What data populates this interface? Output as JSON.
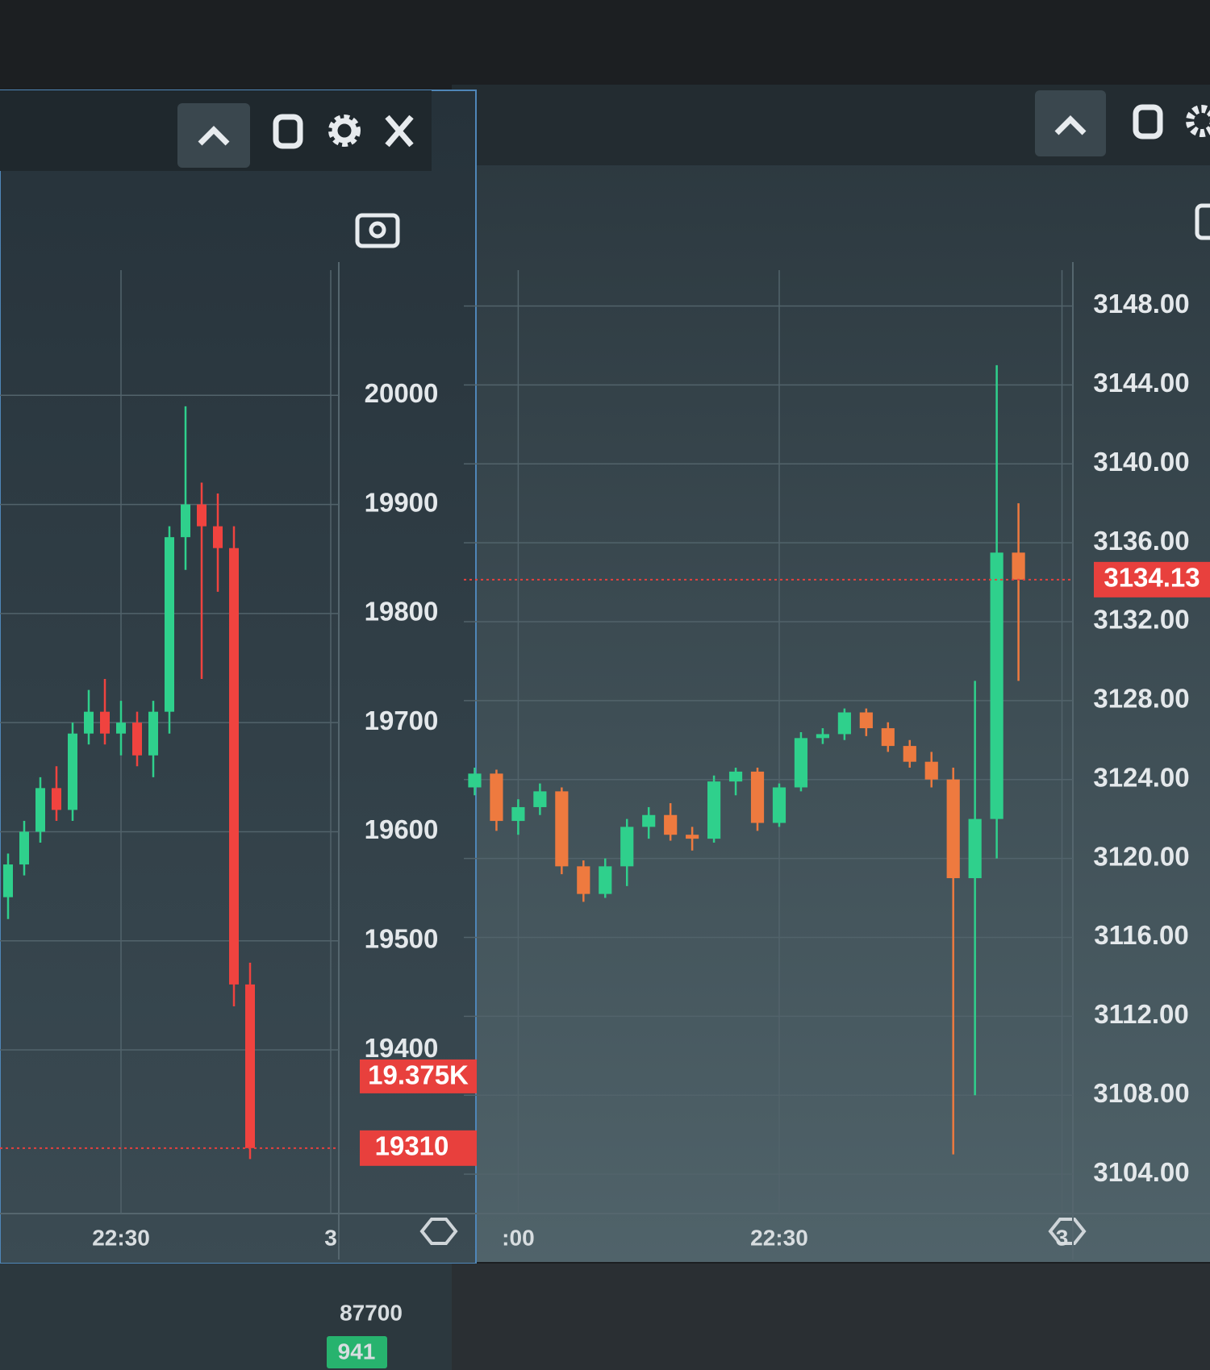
{
  "chart_data": [
    {
      "type": "candlestick",
      "categories": [
        null,
        null,
        null,
        null,
        null,
        null,
        null,
        "22:30",
        null,
        null,
        null,
        null,
        null,
        null,
        null,
        null,
        null,
        null,
        null,
        null,
        "3"
      ],
      "open": [
        19540,
        19570,
        19600,
        19640,
        19620,
        19690,
        19710,
        19690,
        19700,
        19670,
        19710,
        19870,
        19900,
        19880,
        19860,
        19460,
        null,
        null,
        null,
        null,
        null
      ],
      "high": [
        19580,
        19610,
        19650,
        19660,
        19700,
        19730,
        19740,
        19720,
        19710,
        19720,
        19880,
        19990,
        19920,
        19910,
        19880,
        19480,
        null,
        null,
        null,
        null,
        null
      ],
      "low": [
        19520,
        19560,
        19590,
        19610,
        19610,
        19680,
        19680,
        19670,
        19660,
        19650,
        19690,
        19840,
        19740,
        19820,
        19440,
        19300,
        null,
        null,
        null,
        null,
        null
      ],
      "close": [
        19570,
        19600,
        19640,
        19620,
        19690,
        19710,
        19690,
        19700,
        19670,
        19710,
        19870,
        19900,
        19880,
        19860,
        19460,
        19310,
        null,
        null,
        null,
        null,
        null
      ],
      "up_color": "#2fd08c",
      "down_color": "#f0433f",
      "ylim": [
        19250,
        20100
      ],
      "yticks": [
        19400,
        19500,
        19600,
        19700,
        19800,
        19900,
        20000
      ],
      "grid": true,
      "last_price": 19310,
      "secondary_price": {
        "value": 19375,
        "label": "19.375K"
      }
    },
    {
      "type": "candlestick",
      "categories": [
        null,
        null,
        ":00",
        null,
        null,
        null,
        null,
        null,
        null,
        null,
        null,
        null,
        null,
        null,
        "22:30",
        null,
        null,
        null,
        null,
        null,
        null,
        null,
        null,
        null,
        null,
        null,
        null,
        "3"
      ],
      "open": [
        3123.6,
        3124.3,
        3121.9,
        3122.6,
        3123.4,
        3119.6,
        3118.2,
        3119.6,
        3121.6,
        3122.2,
        3121.2,
        3121.0,
        3123.9,
        3124.4,
        3121.8,
        3123.6,
        3126.1,
        3126.3,
        3127.4,
        3126.6,
        3125.7,
        3124.9,
        3124.0,
        3119.0,
        3122.0,
        3135.5,
        null,
        null
      ],
      "high": [
        3124.6,
        3124.5,
        3123.0,
        3123.8,
        3123.6,
        3119.9,
        3120.0,
        3122.0,
        3122.6,
        3122.8,
        3121.6,
        3124.2,
        3124.6,
        3124.6,
        3123.8,
        3126.4,
        3126.6,
        3127.6,
        3127.6,
        3126.9,
        3126.0,
        3125.4,
        3124.6,
        3129.0,
        3145.0,
        3138.0,
        null,
        null
      ],
      "low": [
        3123.2,
        3121.4,
        3121.2,
        3122.2,
        3119.2,
        3117.8,
        3118.0,
        3118.6,
        3121.0,
        3120.9,
        3120.4,
        3120.8,
        3123.2,
        3121.4,
        3121.6,
        3123.4,
        3125.8,
        3126.0,
        3126.2,
        3125.4,
        3124.6,
        3123.6,
        3105.0,
        3108.0,
        3120.0,
        3129.0,
        null,
        null
      ],
      "close": [
        3124.3,
        3121.9,
        3122.6,
        3123.4,
        3119.6,
        3118.2,
        3119.6,
        3121.6,
        3122.2,
        3121.2,
        3121.0,
        3123.9,
        3124.4,
        3121.8,
        3123.6,
        3126.1,
        3126.3,
        3127.4,
        3126.6,
        3125.7,
        3124.9,
        3124.0,
        3119.0,
        3122.0,
        3135.5,
        3134.13,
        null,
        null
      ],
      "up_color": "#2fd08c",
      "down_color": "#ee7a3f",
      "ylim": [
        3102,
        3149
      ],
      "yticks": [
        {
          "value": 3104,
          "label": "3104.00"
        },
        {
          "value": 3108,
          "label": "3108.00"
        },
        {
          "value": 3112,
          "label": "3112.00"
        },
        {
          "value": 3116,
          "label": "3116.00"
        },
        {
          "value": 3120,
          "label": "3120.00"
        },
        {
          "value": 3124,
          "label": "3124.00"
        },
        {
          "value": 3128,
          "label": "3128.00"
        },
        {
          "value": 3132,
          "label": "3132.00"
        },
        {
          "value": 3136,
          "label": "3136.00"
        },
        {
          "value": 3140,
          "label": "3140.00"
        },
        {
          "value": 3144,
          "label": "3144.00"
        },
        {
          "value": 3148,
          "label": "3148.00"
        }
      ],
      "grid": true,
      "last_price": 3134.13
    }
  ],
  "lower_pane": {
    "ytick": 87700,
    "last_volume": 941
  }
}
